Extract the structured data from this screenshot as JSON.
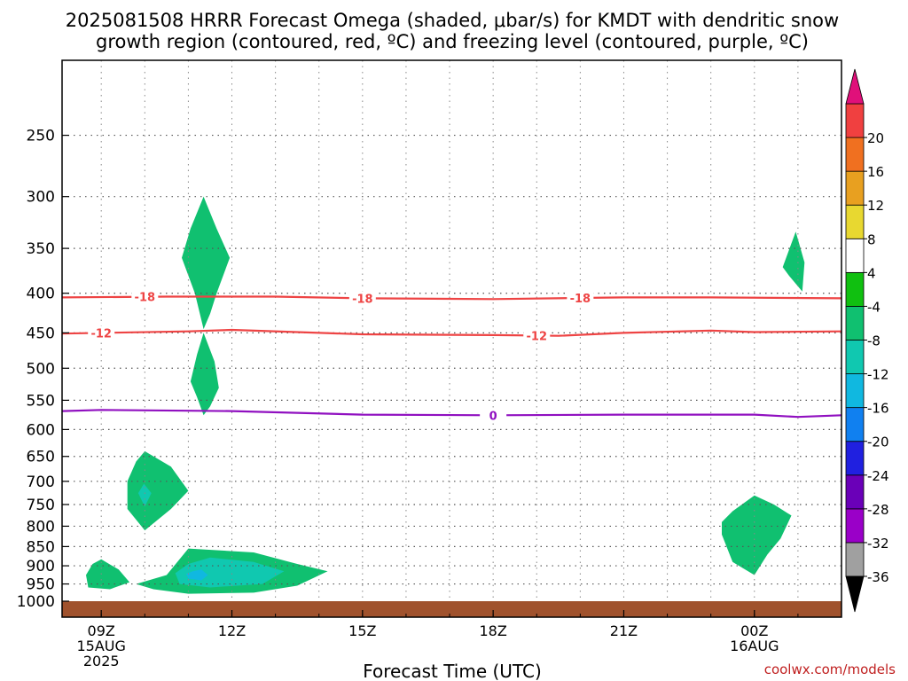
{
  "chart_data": {
    "type": "heatmap",
    "title_line1": "2025081508 HRRR Forecast Omega (shaded, μbar/s) for KMDT with dendritic snow",
    "title_line2": "growth region (contoured, red, ºC) and freezing level (contoured, purple, ºC)",
    "xlabel": "Forecast Time (UTC)",
    "credit": "coolwx.com/models",
    "y_scale": "log-pressure",
    "y_ticks": [
      250,
      300,
      350,
      400,
      450,
      500,
      550,
      600,
      650,
      700,
      750,
      800,
      850,
      900,
      950,
      1000
    ],
    "y_top_hPa": 200,
    "y_bottom_hPa": 1000,
    "x_ticks": [
      {
        "hour": 0,
        "lines": [
          "09Z",
          "15AUG",
          "2025"
        ]
      },
      {
        "hour": 3,
        "lines": [
          "12Z"
        ]
      },
      {
        "hour": 6,
        "lines": [
          "15Z"
        ]
      },
      {
        "hour": 9,
        "lines": [
          "18Z"
        ]
      },
      {
        "hour": 12,
        "lines": [
          "21Z"
        ]
      },
      {
        "hour": 15,
        "lines": [
          "00Z",
          "16AUG"
        ]
      }
    ],
    "x_range_hours": [
      -0.9,
      17
    ],
    "grid": true,
    "surface_hPa": 1000,
    "surface_color": "#a0522d",
    "colorbar": {
      "levels": [
        -36,
        -32,
        -28,
        -24,
        -20,
        -16,
        -12,
        -8,
        -4,
        4,
        8,
        12,
        16,
        20
      ],
      "colors": [
        "#a0a0a0",
        "#9a00c8",
        "#6a00b8",
        "#2020e0",
        "#1080f0",
        "#10b8e0",
        "#10c8b0",
        "#10c070",
        "#10c010",
        "#ffffff",
        "#e8d830",
        "#e8a020",
        "#f07020",
        "#f04040"
      ],
      "below_color": "#000000",
      "above_color": "#e0107a"
    },
    "contours": [
      {
        "name": "-18",
        "color": "#ee4444",
        "label": "-18",
        "points": [
          [
            -0.9,
            405
          ],
          [
            1.5,
            404
          ],
          [
            4,
            404
          ],
          [
            6,
            406
          ],
          [
            9,
            407
          ],
          [
            12,
            405
          ],
          [
            14,
            405
          ],
          [
            17,
            406
          ]
        ],
        "label_at_hours": [
          1,
          6,
          11
        ]
      },
      {
        "name": "-12",
        "color": "#ee4444",
        "label": "-12",
        "points": [
          [
            -0.9,
            451
          ],
          [
            2,
            448
          ],
          [
            3,
            446
          ],
          [
            6,
            452
          ],
          [
            9,
            453
          ],
          [
            10.5,
            454
          ],
          [
            12,
            450
          ],
          [
            14,
            447
          ],
          [
            15,
            449
          ],
          [
            17,
            448
          ]
        ],
        "label_at_hours": [
          0,
          10
        ]
      },
      {
        "name": "0",
        "color": "#9010c0",
        "label": "0",
        "points": [
          [
            -0.9,
            568
          ],
          [
            0,
            566
          ],
          [
            3,
            568
          ],
          [
            6,
            574
          ],
          [
            9,
            575
          ],
          [
            12,
            574
          ],
          [
            15,
            574
          ],
          [
            16,
            578
          ],
          [
            17,
            575
          ]
        ],
        "label_at_hours": [
          9
        ]
      }
    ],
    "regions": [
      {
        "value": -5,
        "points": [
          [
            2.35,
            300
          ],
          [
            2.65,
            330
          ],
          [
            2.95,
            360
          ],
          [
            2.65,
            400
          ],
          [
            2.5,
            425
          ],
          [
            2.35,
            445
          ],
          [
            2.15,
            400
          ],
          [
            1.85,
            360
          ],
          [
            2.05,
            330
          ]
        ]
      },
      {
        "value": -5,
        "points": [
          [
            2.35,
            450
          ],
          [
            2.6,
            490
          ],
          [
            2.7,
            530
          ],
          [
            2.5,
            560
          ],
          [
            2.35,
            575
          ],
          [
            2.2,
            545
          ],
          [
            2.05,
            520
          ],
          [
            2.2,
            480
          ]
        ]
      },
      {
        "value": -5,
        "points": [
          [
            1.0,
            640
          ],
          [
            1.6,
            670
          ],
          [
            2.0,
            720
          ],
          [
            1.6,
            760
          ],
          [
            1.0,
            810
          ],
          [
            0.6,
            760
          ],
          [
            0.6,
            700
          ],
          [
            0.8,
            660
          ]
        ]
      },
      {
        "value": -9,
        "points": [
          [
            0.98,
            705
          ],
          [
            1.15,
            725
          ],
          [
            1.0,
            755
          ],
          [
            0.85,
            725
          ]
        ]
      },
      {
        "value": -5,
        "points": [
          [
            0.0,
            883
          ],
          [
            0.4,
            910
          ],
          [
            0.65,
            945
          ],
          [
            0.2,
            965
          ],
          [
            -0.3,
            960
          ],
          [
            -0.35,
            925
          ],
          [
            -0.2,
            895
          ]
        ]
      },
      {
        "value": -5,
        "points": [
          [
            2.0,
            855
          ],
          [
            3.5,
            865
          ],
          [
            4.5,
            895
          ],
          [
            5.2,
            915
          ],
          [
            4.5,
            955
          ],
          [
            3.5,
            975
          ],
          [
            2.0,
            978
          ],
          [
            1.2,
            965
          ],
          [
            0.8,
            950
          ],
          [
            1.5,
            925
          ]
        ]
      },
      {
        "value": -9,
        "points": [
          [
            2.5,
            878
          ],
          [
            3.5,
            890
          ],
          [
            4.2,
            915
          ],
          [
            3.7,
            950
          ],
          [
            2.5,
            960
          ],
          [
            1.8,
            950
          ],
          [
            1.7,
            920
          ],
          [
            2.0,
            895
          ]
        ]
      },
      {
        "value": -13,
        "points": [
          [
            2.1,
            915
          ],
          [
            2.3,
            910
          ],
          [
            2.45,
            925
          ],
          [
            2.3,
            940
          ],
          [
            2.0,
            935
          ],
          [
            1.95,
            922
          ]
        ]
      },
      {
        "value": 5,
        "points": [
          [
            10.8,
            330
          ],
          [
            11.25,
            375
          ],
          [
            11.3,
            410
          ],
          [
            10.9,
            440
          ],
          [
            10.6,
            410
          ],
          [
            10.5,
            375
          ]
        ]
      },
      {
        "value": 5,
        "points": [
          [
            14.0,
            330
          ],
          [
            14.15,
            345
          ],
          [
            14.2,
            360
          ],
          [
            13.9,
            375
          ],
          [
            13.55,
            355
          ],
          [
            13.6,
            345
          ]
        ]
      },
      {
        "value": -5,
        "points": [
          [
            15.95,
            333
          ],
          [
            16.15,
            365
          ],
          [
            16.1,
            398
          ],
          [
            15.8,
            380
          ],
          [
            15.65,
            370
          ]
        ]
      },
      {
        "value": 5,
        "points": [
          [
            16.95,
            340
          ],
          [
            17.0,
            340
          ],
          [
            17.0,
            380
          ],
          [
            16.95,
            370
          ]
        ]
      },
      {
        "value": 5,
        "points": [
          [
            10.5,
            658
          ],
          [
            10.85,
            680
          ],
          [
            10.95,
            740
          ],
          [
            10.75,
            790
          ],
          [
            10.3,
            790
          ],
          [
            10.05,
            750
          ],
          [
            10.0,
            700
          ],
          [
            10.25,
            670
          ]
        ]
      },
      {
        "value": 5,
        "points": [
          [
            8.1,
            830
          ],
          [
            8.7,
            835
          ],
          [
            9.3,
            860
          ],
          [
            9.65,
            900
          ],
          [
            9.4,
            955
          ],
          [
            8.5,
            965
          ],
          [
            7.6,
            960
          ],
          [
            7.5,
            950
          ],
          [
            7.7,
            920
          ],
          [
            7.8,
            880
          ]
        ]
      },
      {
        "value": -5,
        "points": [
          [
            15.0,
            730
          ],
          [
            15.45,
            750
          ],
          [
            15.85,
            775
          ],
          [
            15.6,
            830
          ],
          [
            15.3,
            870
          ],
          [
            15.0,
            925
          ],
          [
            14.5,
            890
          ],
          [
            14.25,
            820
          ],
          [
            14.25,
            790
          ],
          [
            14.5,
            765
          ]
        ]
      },
      {
        "value": 5,
        "points": [
          [
            13.9,
            900
          ],
          [
            14.0,
            910
          ],
          [
            14.1,
            950
          ],
          [
            14.2,
            965
          ],
          [
            13.9,
            962
          ],
          [
            13.8,
            945
          ],
          [
            13.8,
            905
          ]
        ]
      },
      {
        "value": 5,
        "points": [
          [
            17.0,
            838
          ],
          [
            17.0,
            962
          ],
          [
            16.0,
            962
          ],
          [
            16.5,
            945
          ],
          [
            16.4,
            900
          ],
          [
            16.65,
            870
          ]
        ]
      }
    ]
  }
}
